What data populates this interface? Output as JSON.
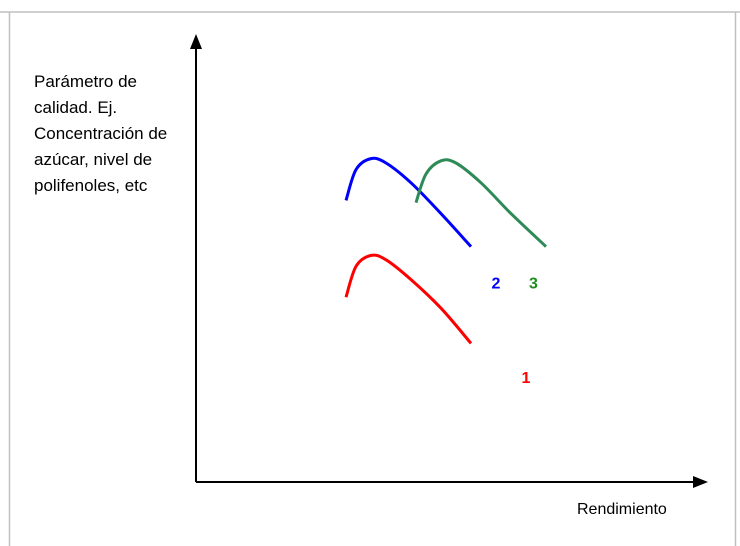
{
  "chart_data": {
    "type": "line",
    "title": "",
    "xlabel": "Rendimiento",
    "ylabel": "Parámetro de calidad. Ej. Concentración de azúcar, nivel de polifenoles, etc",
    "ylabel_lines": [
      "Parámetro de",
      "calidad. Ej.",
      "Concentración de",
      "azúcar, nivel de",
      "polifenoles, etc"
    ],
    "xlim": [
      0,
      10
    ],
    "ylim": [
      0,
      10
    ],
    "grid": false,
    "legend": "none",
    "series": [
      {
        "name": "1",
        "color": "#ff0000",
        "points": [
          [
            3.0,
            4.2
          ],
          [
            3.2,
            4.9
          ],
          [
            3.5,
            5.15
          ],
          [
            3.8,
            5.05
          ],
          [
            4.3,
            4.6
          ],
          [
            4.9,
            3.95
          ],
          [
            5.5,
            3.15
          ]
        ]
      },
      {
        "name": "2",
        "color": "#0000ff",
        "points": [
          [
            3.0,
            6.4
          ],
          [
            3.2,
            7.1
          ],
          [
            3.5,
            7.35
          ],
          [
            3.8,
            7.25
          ],
          [
            4.3,
            6.8
          ],
          [
            4.9,
            6.1
          ],
          [
            5.5,
            5.35
          ]
        ]
      },
      {
        "name": "3",
        "color": "#2e8b57",
        "points": [
          [
            4.4,
            6.35
          ],
          [
            4.6,
            7.0
          ],
          [
            4.9,
            7.3
          ],
          [
            5.2,
            7.25
          ],
          [
            5.7,
            6.8
          ],
          [
            6.3,
            6.1
          ],
          [
            7.0,
            5.35
          ]
        ]
      }
    ],
    "labels": [
      {
        "text": "1",
        "color": "#ff0000",
        "x": 6.6,
        "y": 2.25
      },
      {
        "text": "2",
        "color": "#0000ff",
        "x": 6.0,
        "y": 4.4
      },
      {
        "text": "3",
        "color": "#1e8f1e",
        "x": 6.75,
        "y": 4.4
      }
    ]
  }
}
